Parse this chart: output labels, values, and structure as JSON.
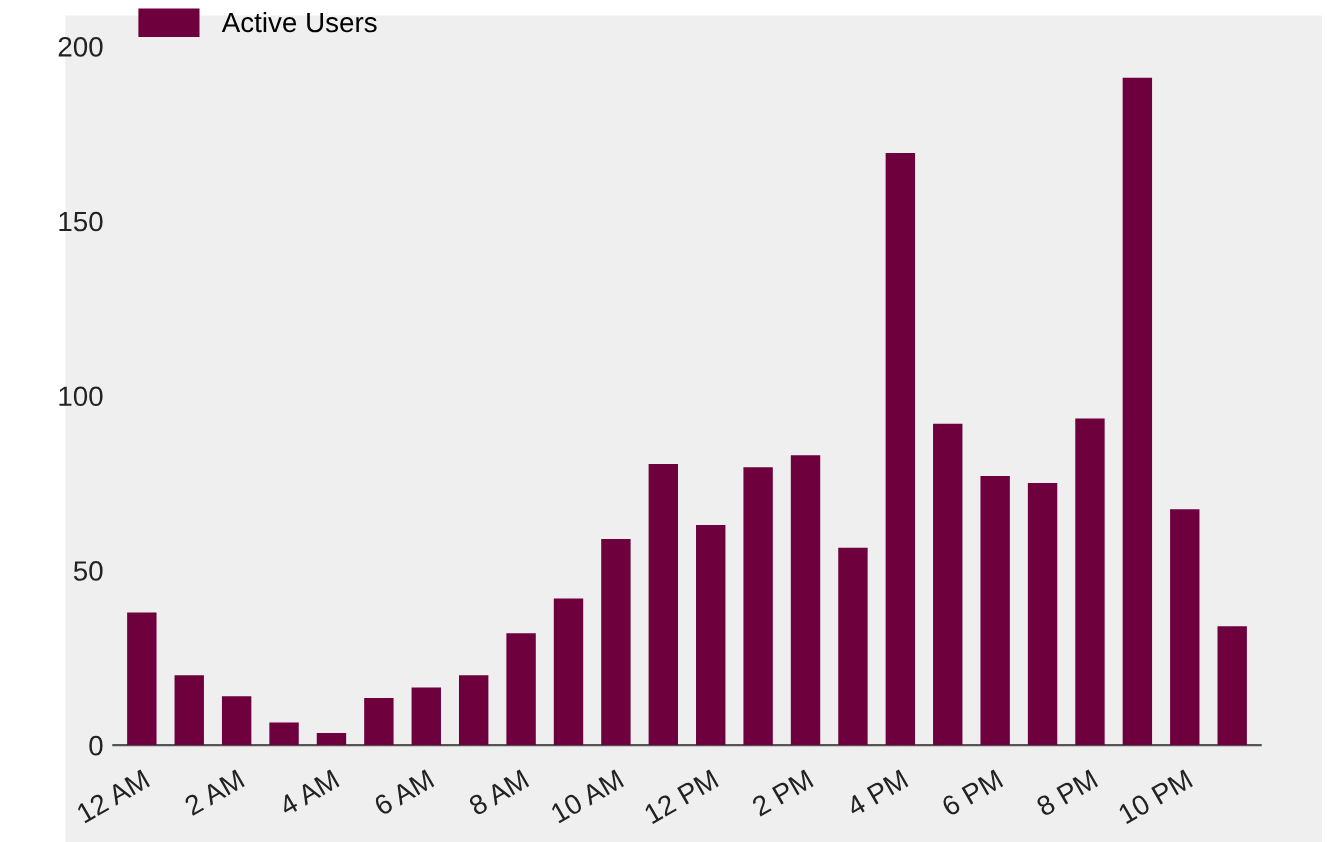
{
  "chart_data": {
    "type": "bar",
    "categories": [
      "12 AM",
      null,
      "2 AM",
      null,
      "4 AM",
      null,
      "6 AM",
      null,
      "8 AM",
      null,
      "10 AM",
      null,
      "12 PM",
      null,
      "2 PM",
      null,
      "4 PM",
      null,
      "6 PM",
      null,
      "8 PM",
      null,
      "10 PM",
      null
    ],
    "series": [
      {
        "name": "Active Users",
        "color": "#6d003d",
        "values": [
          38,
          20,
          14,
          6.5,
          3.5,
          13.5,
          16.5,
          20,
          32,
          42,
          59,
          80.5,
          63,
          79.5,
          83,
          56.5,
          169.5,
          92,
          77,
          75,
          93.5,
          191,
          67.5,
          34
        ]
      }
    ],
    "ylim": [
      0,
      200
    ],
    "yticks": [
      0,
      50,
      100,
      150,
      200
    ],
    "grid": false,
    "legend": "top left"
  }
}
